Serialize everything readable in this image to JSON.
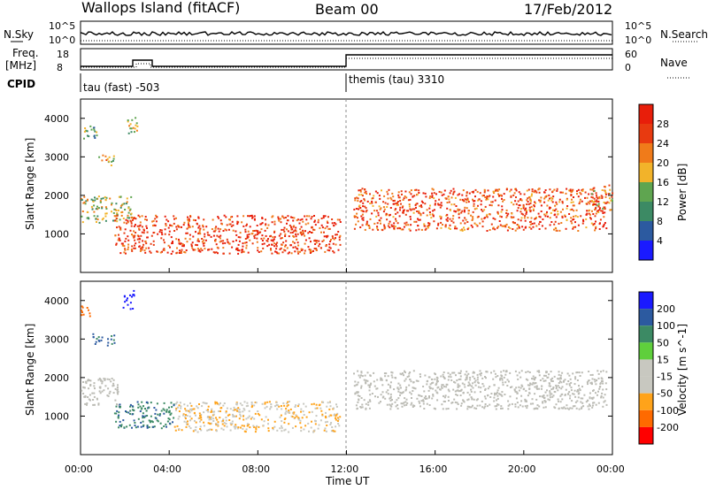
{
  "header": {
    "station": "Wallops Island (fitACF)",
    "beam": "Beam 00",
    "date": "17/Feb/2012"
  },
  "panels": {
    "nsky_label": "N.Sky",
    "nsky_ticks": [
      "10^5",
      "10^0"
    ],
    "nsearch_label": "N.Search",
    "nsearch_ticks": [
      "10^5",
      "10^0"
    ],
    "freq_label": "Freq.",
    "freq_unit": "[MHz]",
    "freq_ticks": [
      "18",
      "8"
    ],
    "nave_label": "Nave",
    "nave_ticks": [
      "60",
      "0"
    ],
    "cpid_label": "CPID",
    "cpid_modes": [
      "tau (fast) -503",
      "themis (tau) 3310"
    ]
  },
  "colors": {
    "power": [
      "#1a1aff",
      "#2c5aa0",
      "#3c8a64",
      "#5fa550",
      "#f2b32a",
      "#f07b1a",
      "#e83a10",
      "#e81e0a"
    ],
    "velocity": [
      "#ff0000",
      "#ff6a00",
      "#ffa31a",
      "#c8c8c0",
      "#c8c8c0",
      "#5fcf3c",
      "#3c8a64",
      "#2c5aa0",
      "#1a1aff"
    ],
    "ground_scatter": "#bbbbb4"
  },
  "chart_data": [
    {
      "type": "heatmap",
      "title": "",
      "xlabel": "",
      "ylabel": "Slant Range [km]",
      "xlim": [
        "00:00",
        "24:00"
      ],
      "ylim": [
        0,
        4500
      ],
      "yticks": [
        "4000",
        "3000",
        "2000",
        "1000"
      ],
      "colorbar": {
        "label": "Power [dB]",
        "ticks": [
          "28",
          "24",
          "20",
          "16",
          "12",
          "8",
          "4"
        ],
        "range": [
          0,
          30
        ]
      },
      "regions": [
        {
          "t_start": 0.0,
          "t_end": 0.7,
          "r_low": 3450,
          "r_high": 3850,
          "level": 12
        },
        {
          "t_start": 0.8,
          "t_end": 1.5,
          "r_low": 2800,
          "r_high": 3100,
          "level": 18
        },
        {
          "t_start": 2.1,
          "t_end": 2.6,
          "r_low": 3600,
          "r_high": 4100,
          "level": 14
        },
        {
          "t_start": 0.0,
          "t_end": 2.3,
          "r_low": 1300,
          "r_high": 2000,
          "level": 15
        },
        {
          "t_start": 1.5,
          "t_end": 11.7,
          "r_low": 500,
          "r_high": 1500,
          "level": 26
        },
        {
          "t_start": 12.3,
          "t_end": 23.7,
          "r_low": 1100,
          "r_high": 2200,
          "level": 24
        },
        {
          "t_start": 23.0,
          "t_end": 24.0,
          "r_low": 1600,
          "r_high": 2300,
          "level": 20
        }
      ]
    },
    {
      "type": "heatmap",
      "title": "",
      "xlabel": "Time UT",
      "ylabel": "Slant Range [km]",
      "xlim": [
        "00:00",
        "24:00"
      ],
      "ylim": [
        0,
        4500
      ],
      "xticks": [
        "00:00",
        "04:00",
        "08:00",
        "12:00",
        "16:00",
        "20:00",
        "00:00"
      ],
      "yticks": [
        "4000",
        "3000",
        "2000",
        "1000"
      ],
      "colorbar": {
        "label": "Velocity [m s^-1]",
        "ticks": [
          "200",
          "100",
          "50",
          "15",
          "-15",
          "-50",
          "-100",
          "-200"
        ],
        "range": [
          -250,
          250
        ]
      },
      "regions": [
        {
          "t_start": 0.0,
          "t_end": 0.4,
          "r_low": 3550,
          "r_high": 3900,
          "velocity": -180
        },
        {
          "t_start": 0.5,
          "t_end": 1.5,
          "r_low": 2850,
          "r_high": 3150,
          "velocity": 60
        },
        {
          "t_start": 1.9,
          "t_end": 2.4,
          "r_low": 3800,
          "r_high": 4300,
          "velocity": 150
        },
        {
          "t_start": 0.0,
          "t_end": 1.7,
          "r_low": 1300,
          "r_high": 2000,
          "velocity": 0,
          "ground_scatter": true
        },
        {
          "t_start": 1.5,
          "t_end": 4.2,
          "r_low": 700,
          "r_high": 1400,
          "velocity": 40
        },
        {
          "t_start": 4.2,
          "t_end": 11.7,
          "r_low": 600,
          "r_high": 1400,
          "velocity": -45
        },
        {
          "t_start": 12.3,
          "t_end": 23.7,
          "r_low": 1200,
          "r_high": 2200,
          "velocity": 0,
          "ground_scatter": true
        }
      ]
    }
  ]
}
